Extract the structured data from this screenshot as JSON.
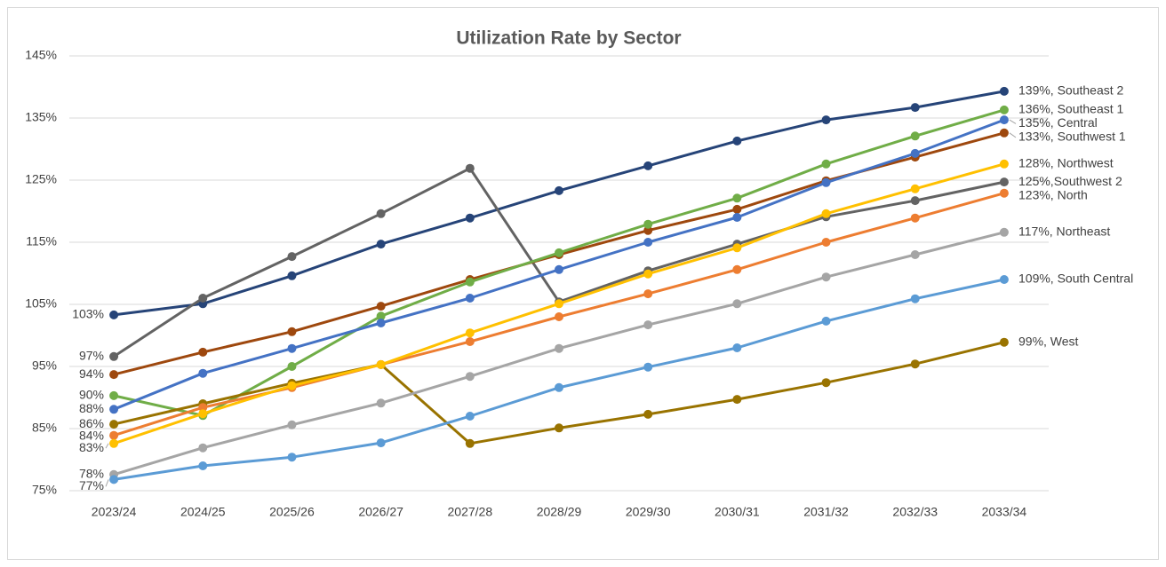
{
  "chart_data": {
    "type": "line",
    "title": "Utilization Rate by Sector",
    "categories": [
      "2023/24",
      "2024/25",
      "2025/26",
      "2026/27",
      "2027/28",
      "2028/29",
      "2029/30",
      "2030/31",
      "2031/32",
      "2032/33",
      "2033/34"
    ],
    "ylim": [
      75,
      145
    ],
    "yticks": [
      {
        "value": 75,
        "label": "75%"
      },
      {
        "value": 85,
        "label": "85%"
      },
      {
        "value": 95,
        "label": "95%"
      },
      {
        "value": 105,
        "label": "105%"
      },
      {
        "value": 115,
        "label": "115%"
      },
      {
        "value": 125,
        "label": "125%"
      },
      {
        "value": 135,
        "label": "135%"
      },
      {
        "value": 145,
        "label": "145%"
      }
    ],
    "grid": true,
    "series": [
      {
        "name": "Southeast 2",
        "color": "#264478",
        "values": [
          103.3,
          105.1,
          109.6,
          114.7,
          118.9,
          123.3,
          127.3,
          131.3,
          134.7,
          136.7,
          139.3
        ],
        "value_labels": [
          "103%",
          null,
          null,
          null,
          null,
          null,
          null,
          null,
          null,
          null,
          "139%, Southeast 2"
        ]
      },
      {
        "name": "Southwest 2",
        "color": "#636363",
        "values": [
          96.6,
          106.0,
          112.7,
          119.6,
          126.9,
          105.4,
          110.4,
          114.7,
          119.1,
          121.7,
          124.7
        ],
        "value_labels": [
          "97%",
          null,
          null,
          null,
          null,
          null,
          null,
          null,
          null,
          null,
          "125%,Southwest 2"
        ]
      },
      {
        "name": "Southwest 1",
        "color": "#9e480e",
        "values": [
          93.7,
          97.3,
          100.6,
          104.7,
          109.0,
          113.0,
          116.9,
          120.3,
          124.9,
          128.7,
          132.6
        ],
        "value_labels": [
          "94%",
          null,
          null,
          null,
          null,
          null,
          null,
          null,
          null,
          null,
          "133%, Southwest 1"
        ]
      },
      {
        "name": "Southeast 1",
        "color": "#70ad47",
        "values": [
          90.3,
          87.1,
          95.0,
          103.1,
          108.6,
          113.3,
          117.9,
          122.1,
          127.6,
          132.1,
          136.3
        ],
        "value_labels": [
          "90%",
          null,
          null,
          null,
          null,
          null,
          null,
          null,
          null,
          null,
          "136%, Southeast 1"
        ]
      },
      {
        "name": "Central",
        "color": "#4472c4",
        "values": [
          88.1,
          93.9,
          97.9,
          102.0,
          106.0,
          110.6,
          115.0,
          119.0,
          124.6,
          129.3,
          134.7
        ],
        "value_labels": [
          "88%",
          null,
          null,
          null,
          null,
          null,
          null,
          null,
          null,
          null,
          "135%, Central"
        ]
      },
      {
        "name": "West",
        "color": "#997300",
        "values": [
          85.7,
          89.0,
          92.3,
          95.3,
          82.6,
          85.1,
          87.3,
          89.7,
          92.4,
          95.4,
          98.9
        ],
        "value_labels": [
          "86%",
          null,
          null,
          null,
          null,
          null,
          null,
          null,
          null,
          null,
          "99%, West"
        ]
      },
      {
        "name": "North",
        "color": "#ed7d31",
        "values": [
          83.9,
          88.4,
          91.6,
          95.3,
          99.0,
          103.0,
          106.7,
          110.6,
          115.0,
          118.9,
          122.9
        ],
        "value_labels": [
          "84%",
          null,
          null,
          null,
          null,
          null,
          null,
          null,
          null,
          null,
          "123%, North"
        ]
      },
      {
        "name": "Northwest",
        "color": "#ffc000",
        "values": [
          82.6,
          87.4,
          91.9,
          95.3,
          100.4,
          105.1,
          109.9,
          114.1,
          119.6,
          123.6,
          127.6
        ],
        "value_labels": [
          "83%",
          null,
          null,
          null,
          null,
          null,
          null,
          null,
          null,
          null,
          "128%, Northwest"
        ]
      },
      {
        "name": "Northeast",
        "color": "#a5a5a5",
        "values": [
          77.6,
          81.9,
          85.6,
          89.1,
          93.4,
          97.9,
          101.7,
          105.1,
          109.4,
          113.0,
          116.6
        ],
        "value_labels": [
          "78%",
          null,
          null,
          null,
          null,
          null,
          null,
          null,
          null,
          null,
          "117%, Northeast"
        ]
      },
      {
        "name": "South Central",
        "color": "#5b9bd5",
        "values": [
          76.8,
          79.0,
          80.4,
          82.7,
          87.0,
          91.6,
          94.9,
          98.0,
          102.3,
          105.9,
          109.0
        ],
        "value_labels": [
          "77%",
          null,
          null,
          null,
          null,
          null,
          null,
          null,
          null,
          null,
          "109%, South Central"
        ]
      }
    ]
  }
}
